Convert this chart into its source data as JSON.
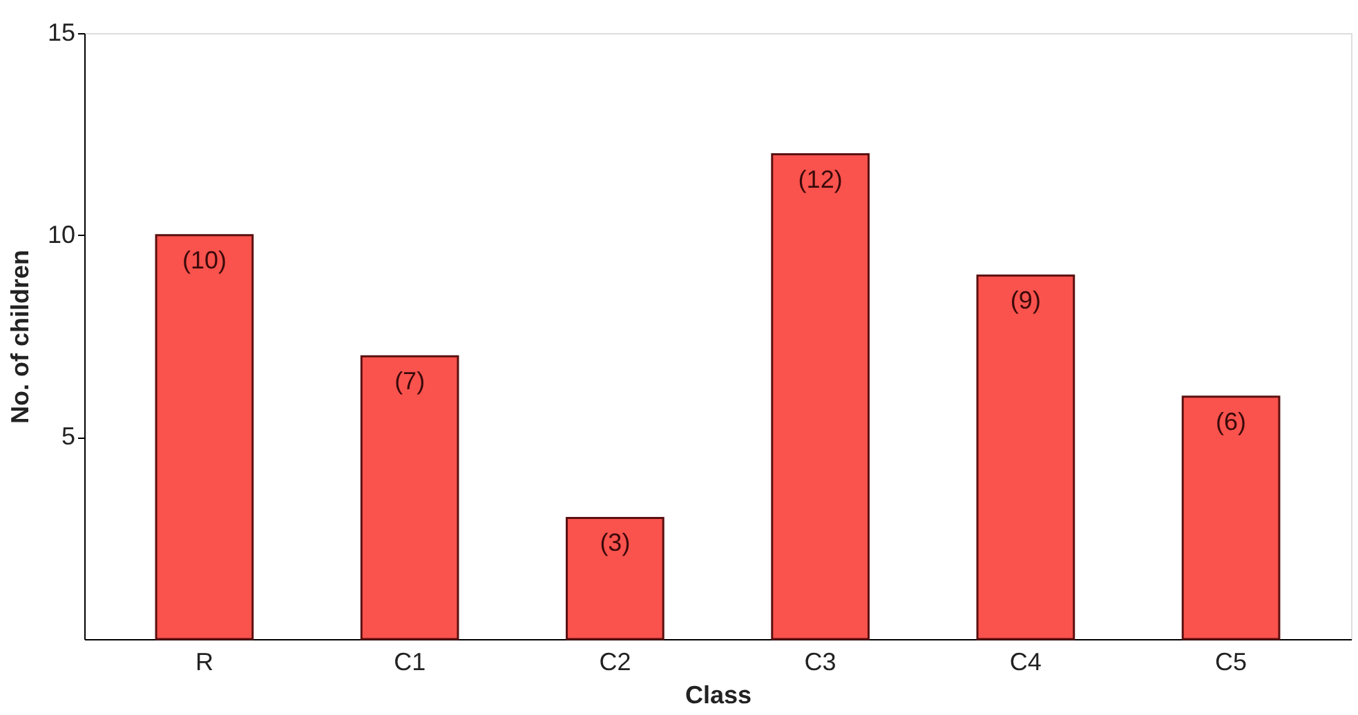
{
  "chart_data": {
    "type": "bar",
    "xlabel": "Class",
    "ylabel": "No. of children",
    "categories": [
      "R",
      "C1",
      "C2",
      "C3",
      "C4",
      "C5"
    ],
    "values": [
      10,
      7,
      3,
      12,
      9,
      6
    ],
    "value_labels": [
      "(10)",
      "(7)",
      "(3)",
      "(12)",
      "(9)",
      "(6)"
    ],
    "color": "#fa524d",
    "ylim": [
      0,
      15
    ],
    "yticks": [
      5,
      10,
      15
    ],
    "grid": false
  }
}
